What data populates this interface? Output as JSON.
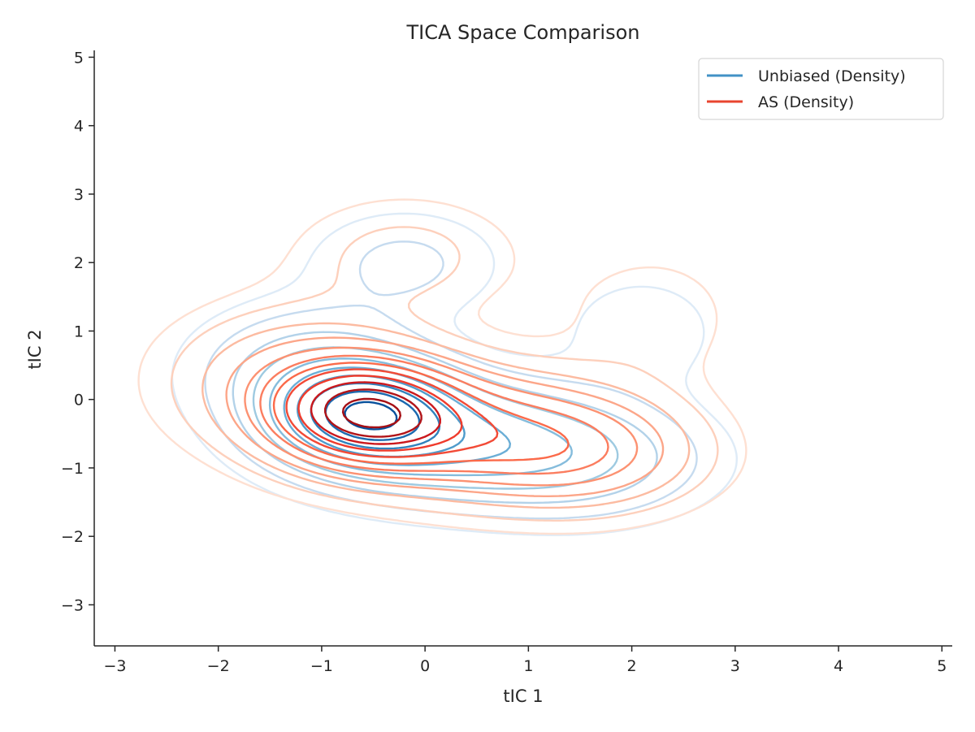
{
  "chart_data": {
    "type": "contour",
    "title": "TICA Space Comparison",
    "xlabel": "tIC 1",
    "ylabel": "tIC 2",
    "xlim": [
      -3.2,
      5.1
    ],
    "ylim": [
      -3.6,
      5.1
    ],
    "xticks": [
      -3,
      -2,
      -1,
      0,
      1,
      2,
      3,
      4,
      5
    ],
    "yticks": [
      -3,
      -2,
      -1,
      0,
      1,
      2,
      3,
      4,
      5
    ],
    "xtick_labels": [
      "−3",
      "−2",
      "−1",
      "0",
      "1",
      "2",
      "3",
      "4",
      "5"
    ],
    "ytick_labels": [
      "−3",
      "−2",
      "−1",
      "0",
      "1",
      "2",
      "3",
      "4",
      "5"
    ],
    "legend_position": "top-right",
    "grid": false,
    "series": [
      {
        "name": "Unbiased (Density)",
        "legend_color": "#4292c6",
        "levels": 10,
        "colors": [
          "#deebf7",
          "#c6dbef",
          "#b3d2e9",
          "#9ecae1",
          "#85bcdc",
          "#6baed6",
          "#4f9bcb",
          "#3182bd",
          "#1b69af",
          "#08519c"
        ],
        "peak": [
          -0.58,
          -0.2
        ],
        "extent_x": [
          -2.3,
          2.8
        ],
        "extent_y": [
          -2.35,
          3.1
        ],
        "lobes": [
          {
            "cx": -0.58,
            "cy": -0.2,
            "sx": 0.55,
            "sy": 0.45,
            "w": 1.0
          },
          {
            "cx": 0.2,
            "cy": -0.6,
            "sx": 0.9,
            "sy": 0.55,
            "w": 0.55
          },
          {
            "cx": 1.5,
            "cy": -0.9,
            "sx": 0.8,
            "sy": 0.55,
            "w": 0.28
          },
          {
            "cx": -0.2,
            "cy": 2.0,
            "sx": 0.6,
            "sy": 0.5,
            "w": 0.14
          },
          {
            "cx": 2.1,
            "cy": 1.0,
            "sx": 0.55,
            "sy": 0.6,
            "w": 0.09
          },
          {
            "cx": -1.1,
            "cy": 0.4,
            "sx": 0.7,
            "sy": 0.6,
            "w": 0.3
          }
        ]
      },
      {
        "name": "AS (Density)",
        "legend_color": "#e8442f",
        "levels": 12,
        "colors": [
          "#fee0d2",
          "#fdd0bc",
          "#fcbba1",
          "#fca689",
          "#fc9272",
          "#fb7d5f",
          "#fb6a4a",
          "#f24a36",
          "#ef3b2c",
          "#cb181d",
          "#b11419",
          "#a50f15"
        ],
        "peak": [
          -0.58,
          -0.18
        ],
        "extent_x": [
          -2.5,
          3.0
        ],
        "extent_y": [
          -2.5,
          3.3
        ],
        "lobes": [
          {
            "cx": -0.58,
            "cy": -0.18,
            "sx": 0.6,
            "sy": 0.5,
            "w": 1.0
          },
          {
            "cx": 0.5,
            "cy": -0.5,
            "sx": 0.9,
            "sy": 0.6,
            "w": 0.5
          },
          {
            "cx": 1.6,
            "cy": -0.8,
            "sx": 0.75,
            "sy": 0.55,
            "w": 0.3
          },
          {
            "cx": -0.2,
            "cy": 2.1,
            "sx": 0.75,
            "sy": 0.6,
            "w": 0.12
          },
          {
            "cx": 2.2,
            "cy": 1.2,
            "sx": 0.6,
            "sy": 0.7,
            "w": 0.08
          },
          {
            "cx": -1.3,
            "cy": 0.3,
            "sx": 0.8,
            "sy": 0.7,
            "w": 0.25
          }
        ]
      }
    ]
  }
}
